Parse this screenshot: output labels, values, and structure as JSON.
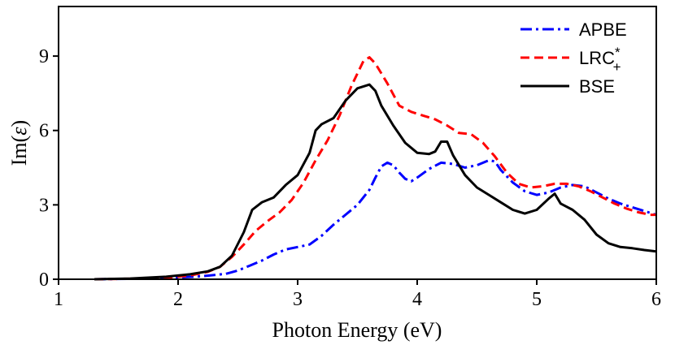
{
  "chart_data": {
    "type": "line",
    "title": "",
    "xlabel": "Photon Energy (eV)",
    "ylabel_prefix": "Im(",
    "ylabel_symbol": "ε",
    "ylabel_suffix": ")",
    "xlim": [
      1,
      6
    ],
    "ylim": [
      0,
      11
    ],
    "xticks": [
      1,
      2,
      3,
      4,
      5,
      6
    ],
    "yticks": [
      0,
      3,
      6,
      9
    ],
    "grid": false,
    "legend_position": "top-right",
    "series": [
      {
        "name": "APBE",
        "color": "#0000ff",
        "style": "dashdot",
        "points": [
          [
            1.3,
            0.0
          ],
          [
            1.6,
            0.02
          ],
          [
            1.9,
            0.05
          ],
          [
            2.2,
            0.12
          ],
          [
            2.4,
            0.22
          ],
          [
            2.5,
            0.35
          ],
          [
            2.6,
            0.55
          ],
          [
            2.7,
            0.75
          ],
          [
            2.8,
            1.0
          ],
          [
            2.9,
            1.2
          ],
          [
            3.0,
            1.3
          ],
          [
            3.1,
            1.4
          ],
          [
            3.2,
            1.75
          ],
          [
            3.3,
            2.2
          ],
          [
            3.4,
            2.6
          ],
          [
            3.5,
            3.0
          ],
          [
            3.6,
            3.6
          ],
          [
            3.65,
            4.1
          ],
          [
            3.7,
            4.55
          ],
          [
            3.75,
            4.7
          ],
          [
            3.8,
            4.6
          ],
          [
            3.85,
            4.3
          ],
          [
            3.9,
            4.05
          ],
          [
            3.95,
            3.95
          ],
          [
            4.0,
            4.1
          ],
          [
            4.1,
            4.45
          ],
          [
            4.2,
            4.7
          ],
          [
            4.3,
            4.65
          ],
          [
            4.4,
            4.5
          ],
          [
            4.5,
            4.6
          ],
          [
            4.6,
            4.8
          ],
          [
            4.65,
            4.75
          ],
          [
            4.7,
            4.4
          ],
          [
            4.8,
            3.9
          ],
          [
            4.9,
            3.55
          ],
          [
            5.0,
            3.4
          ],
          [
            5.1,
            3.5
          ],
          [
            5.2,
            3.7
          ],
          [
            5.3,
            3.8
          ],
          [
            5.4,
            3.75
          ],
          [
            5.5,
            3.5
          ],
          [
            5.6,
            3.25
          ],
          [
            5.7,
            3.05
          ],
          [
            5.8,
            2.9
          ],
          [
            5.9,
            2.75
          ],
          [
            6.0,
            2.6
          ]
        ]
      },
      {
        "name": "LRC",
        "name_sup": "*",
        "name_sub": "+",
        "color": "#ff0000",
        "style": "dashed",
        "points": [
          [
            1.3,
            0.0
          ],
          [
            1.6,
            0.02
          ],
          [
            1.9,
            0.06
          ],
          [
            2.1,
            0.15
          ],
          [
            2.25,
            0.3
          ],
          [
            2.35,
            0.5
          ],
          [
            2.45,
            0.9
          ],
          [
            2.55,
            1.4
          ],
          [
            2.65,
            1.95
          ],
          [
            2.75,
            2.35
          ],
          [
            2.85,
            2.7
          ],
          [
            2.95,
            3.2
          ],
          [
            3.05,
            3.9
          ],
          [
            3.15,
            4.8
          ],
          [
            3.25,
            5.6
          ],
          [
            3.35,
            6.6
          ],
          [
            3.45,
            7.8
          ],
          [
            3.55,
            8.8
          ],
          [
            3.6,
            8.95
          ],
          [
            3.65,
            8.7
          ],
          [
            3.75,
            7.9
          ],
          [
            3.85,
            7.0
          ],
          [
            3.95,
            6.75
          ],
          [
            4.05,
            6.6
          ],
          [
            4.15,
            6.45
          ],
          [
            4.25,
            6.2
          ],
          [
            4.35,
            5.9
          ],
          [
            4.45,
            5.85
          ],
          [
            4.55,
            5.5
          ],
          [
            4.65,
            4.95
          ],
          [
            4.75,
            4.3
          ],
          [
            4.85,
            3.85
          ],
          [
            4.95,
            3.7
          ],
          [
            5.05,
            3.75
          ],
          [
            5.15,
            3.85
          ],
          [
            5.25,
            3.85
          ],
          [
            5.35,
            3.75
          ],
          [
            5.45,
            3.55
          ],
          [
            5.55,
            3.3
          ],
          [
            5.65,
            3.05
          ],
          [
            5.75,
            2.85
          ],
          [
            5.85,
            2.7
          ],
          [
            5.95,
            2.6
          ],
          [
            6.0,
            2.6
          ]
        ]
      },
      {
        "name": "BSE",
        "color": "#000000",
        "style": "solid",
        "points": [
          [
            1.3,
            0.0
          ],
          [
            1.6,
            0.03
          ],
          [
            1.9,
            0.1
          ],
          [
            2.1,
            0.2
          ],
          [
            2.25,
            0.32
          ],
          [
            2.35,
            0.5
          ],
          [
            2.45,
            0.95
          ],
          [
            2.55,
            1.9
          ],
          [
            2.62,
            2.8
          ],
          [
            2.7,
            3.1
          ],
          [
            2.8,
            3.3
          ],
          [
            2.9,
            3.8
          ],
          [
            3.0,
            4.2
          ],
          [
            3.1,
            5.1
          ],
          [
            3.15,
            6.0
          ],
          [
            3.2,
            6.25
          ],
          [
            3.3,
            6.5
          ],
          [
            3.4,
            7.2
          ],
          [
            3.5,
            7.7
          ],
          [
            3.6,
            7.85
          ],
          [
            3.65,
            7.6
          ],
          [
            3.7,
            7.0
          ],
          [
            3.8,
            6.2
          ],
          [
            3.9,
            5.5
          ],
          [
            4.0,
            5.1
          ],
          [
            4.1,
            5.05
          ],
          [
            4.15,
            5.15
          ],
          [
            4.2,
            5.55
          ],
          [
            4.25,
            5.55
          ],
          [
            4.3,
            5.0
          ],
          [
            4.4,
            4.2
          ],
          [
            4.5,
            3.7
          ],
          [
            4.6,
            3.4
          ],
          [
            4.7,
            3.1
          ],
          [
            4.8,
            2.8
          ],
          [
            4.9,
            2.65
          ],
          [
            5.0,
            2.8
          ],
          [
            5.1,
            3.25
          ],
          [
            5.15,
            3.45
          ],
          [
            5.2,
            3.05
          ],
          [
            5.3,
            2.8
          ],
          [
            5.4,
            2.4
          ],
          [
            5.5,
            1.8
          ],
          [
            5.6,
            1.45
          ],
          [
            5.7,
            1.3
          ],
          [
            5.8,
            1.25
          ],
          [
            5.9,
            1.18
          ],
          [
            6.0,
            1.12
          ]
        ]
      }
    ]
  }
}
